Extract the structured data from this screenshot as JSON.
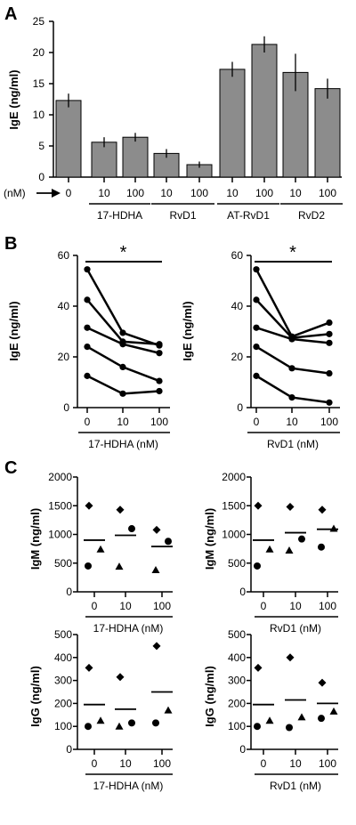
{
  "chart_data": [
    {
      "id": "A",
      "panel_label": "A",
      "type": "bar",
      "ylabel": "IgE (ng/ml)",
      "ylim": [
        0,
        25
      ],
      "yticks": [
        0,
        5,
        10,
        15,
        20,
        25
      ],
      "bar_color": "#8c8c8c",
      "unit_label": "(nM)",
      "categories": [
        "0",
        "10",
        "100",
        "10",
        "100",
        "10",
        "100",
        "10",
        "100"
      ],
      "values": [
        12.3,
        5.6,
        6.4,
        3.8,
        2.0,
        17.3,
        21.3,
        16.8,
        14.2
      ],
      "errors": [
        1.1,
        0.8,
        0.7,
        0.7,
        0.5,
        1.2,
        1.3,
        3.0,
        1.6
      ],
      "groups": [
        {
          "label": "17-HDHA",
          "from": 1,
          "to": 2
        },
        {
          "label": "RvD1",
          "from": 3,
          "to": 4
        },
        {
          "label": "AT-RvD1",
          "from": 5,
          "to": 6
        },
        {
          "label": "RvD2",
          "from": 7,
          "to": 8
        }
      ]
    },
    {
      "id": "B1",
      "panel_label": "B",
      "type": "line",
      "ylabel": "IgE (ng/ml)",
      "xlabel": "17-HDHA (nM)",
      "categories": [
        "0",
        "10",
        "100"
      ],
      "ylim": [
        0,
        60
      ],
      "yticks": [
        0,
        20,
        40,
        60
      ],
      "significance": "*",
      "series": [
        {
          "values": [
            54.5,
            29.5,
            24.5
          ]
        },
        {
          "values": [
            42.5,
            26.0,
            25.0
          ]
        },
        {
          "values": [
            31.5,
            25.0,
            21.5
          ]
        },
        {
          "values": [
            24.0,
            16.0,
            10.5
          ]
        },
        {
          "values": [
            12.5,
            5.5,
            6.5
          ]
        }
      ]
    },
    {
      "id": "B2",
      "panel_label": "",
      "type": "line",
      "ylabel": "IgE (ng/ml)",
      "xlabel": "RvD1 (nM)",
      "categories": [
        "0",
        "10",
        "100"
      ],
      "ylim": [
        0,
        60
      ],
      "yticks": [
        0,
        20,
        40,
        60
      ],
      "significance": "*",
      "series": [
        {
          "values": [
            54.5,
            28.0,
            33.5
          ]
        },
        {
          "values": [
            42.5,
            27.5,
            29.0
          ]
        },
        {
          "values": [
            31.5,
            27.0,
            25.5
          ]
        },
        {
          "values": [
            24.0,
            15.5,
            13.5
          ]
        },
        {
          "values": [
            12.5,
            4.0,
            2.0
          ]
        }
      ]
    },
    {
      "id": "C1",
      "panel_label": "C",
      "type": "scatter",
      "ylabel": "IgM (ng/ml)",
      "xlabel": "17-HDHA (nM)",
      "categories": [
        "0",
        "10",
        "100"
      ],
      "ylim": [
        0,
        2000
      ],
      "yticks": [
        0,
        500,
        1000,
        1500,
        2000
      ],
      "points": [
        {
          "x": 0,
          "y": 1500,
          "shape": "diamond"
        },
        {
          "x": 0,
          "y": 740,
          "shape": "triangle"
        },
        {
          "x": 0,
          "y": 450,
          "shape": "circle"
        },
        {
          "x": 1,
          "y": 1430,
          "shape": "diamond"
        },
        {
          "x": 1,
          "y": 1100,
          "shape": "circle"
        },
        {
          "x": 1,
          "y": 440,
          "shape": "triangle"
        },
        {
          "x": 2,
          "y": 1080,
          "shape": "diamond"
        },
        {
          "x": 2,
          "y": 880,
          "shape": "circle"
        },
        {
          "x": 2,
          "y": 380,
          "shape": "triangle"
        }
      ],
      "means": [
        900,
        985,
        790
      ]
    },
    {
      "id": "C2",
      "panel_label": "",
      "type": "scatter",
      "ylabel": "IgM (ng/ml)",
      "xlabel": "RvD1 (nM)",
      "categories": [
        "0",
        "10",
        "100"
      ],
      "ylim": [
        0,
        2000
      ],
      "yticks": [
        0,
        500,
        1000,
        1500,
        2000
      ],
      "points": [
        {
          "x": 0,
          "y": 1500,
          "shape": "diamond"
        },
        {
          "x": 0,
          "y": 740,
          "shape": "triangle"
        },
        {
          "x": 0,
          "y": 450,
          "shape": "circle"
        },
        {
          "x": 1,
          "y": 1480,
          "shape": "diamond"
        },
        {
          "x": 1,
          "y": 920,
          "shape": "circle"
        },
        {
          "x": 1,
          "y": 720,
          "shape": "triangle"
        },
        {
          "x": 2,
          "y": 1430,
          "shape": "diamond"
        },
        {
          "x": 2,
          "y": 1100,
          "shape": "triangle"
        },
        {
          "x": 2,
          "y": 780,
          "shape": "circle"
        }
      ],
      "means": [
        900,
        1030,
        1090
      ]
    },
    {
      "id": "C3",
      "panel_label": "",
      "type": "scatter",
      "ylabel": "IgG (ng/ml)",
      "xlabel": "17-HDHA (nM)",
      "categories": [
        "0",
        "10",
        "100"
      ],
      "ylim": [
        0,
        500
      ],
      "yticks": [
        0,
        100,
        200,
        300,
        400,
        500
      ],
      "points": [
        {
          "x": 0,
          "y": 355,
          "shape": "diamond"
        },
        {
          "x": 0,
          "y": 125,
          "shape": "triangle"
        },
        {
          "x": 0,
          "y": 100,
          "shape": "circle"
        },
        {
          "x": 1,
          "y": 315,
          "shape": "diamond"
        },
        {
          "x": 1,
          "y": 115,
          "shape": "circle"
        },
        {
          "x": 1,
          "y": 100,
          "shape": "triangle"
        },
        {
          "x": 2,
          "y": 450,
          "shape": "diamond"
        },
        {
          "x": 2,
          "y": 170,
          "shape": "triangle"
        },
        {
          "x": 2,
          "y": 115,
          "shape": "circle"
        }
      ],
      "means": [
        195,
        175,
        250
      ]
    },
    {
      "id": "C4",
      "panel_label": "",
      "type": "scatter",
      "ylabel": "IgG (ng/ml)",
      "xlabel": "RvD1 (nM)",
      "categories": [
        "0",
        "10",
        "100"
      ],
      "ylim": [
        0,
        500
      ],
      "yticks": [
        0,
        100,
        200,
        300,
        400,
        500
      ],
      "points": [
        {
          "x": 0,
          "y": 355,
          "shape": "diamond"
        },
        {
          "x": 0,
          "y": 125,
          "shape": "triangle"
        },
        {
          "x": 0,
          "y": 100,
          "shape": "circle"
        },
        {
          "x": 1,
          "y": 400,
          "shape": "diamond"
        },
        {
          "x": 1,
          "y": 140,
          "shape": "triangle"
        },
        {
          "x": 1,
          "y": 95,
          "shape": "circle"
        },
        {
          "x": 2,
          "y": 290,
          "shape": "diamond"
        },
        {
          "x": 2,
          "y": 165,
          "shape": "triangle"
        },
        {
          "x": 2,
          "y": 135,
          "shape": "circle"
        }
      ],
      "means": [
        195,
        215,
        200
      ]
    }
  ]
}
